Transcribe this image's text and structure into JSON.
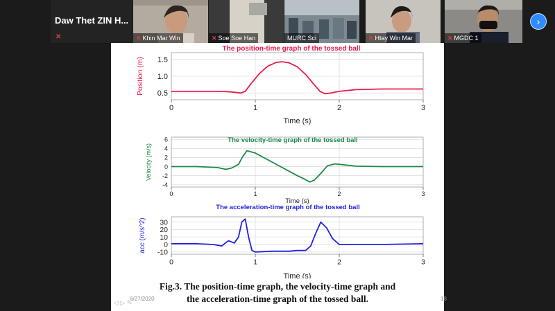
{
  "meeting": {
    "host_name": "Daw Thet ZIN H...",
    "next_label": "›",
    "participants": [
      {
        "name": "Khin Mar Win",
        "muted": true
      },
      {
        "name": "Soe Soe Han",
        "muted": true
      },
      {
        "name": "MURC Sci",
        "muted": false
      },
      {
        "name": "Htay Win Mar",
        "muted": true
      },
      {
        "name": "MGDC 1",
        "muted": true
      }
    ]
  },
  "slide": {
    "date": "6/27/2020",
    "page": "18",
    "caption_line1": "Fig.3. The position-time graph, the velocity-time graph and",
    "caption_line2": "the acceleration-time graph of the tossed ball.",
    "footer_icons": "◁ ▷ ✎ ⋯"
  },
  "chart_data": [
    {
      "type": "line",
      "title": "The position-time graph of the tossed ball",
      "xlabel": "Time (s)",
      "ylabel": "Position (m)",
      "color": "#e8194a",
      "xlim": [
        0,
        3
      ],
      "ylim": [
        0.3,
        1.7
      ],
      "xticks": [
        0,
        1,
        2,
        3
      ],
      "yticks": [
        0.5,
        1.0,
        1.5
      ],
      "ytick_labels": [
        "0.5",
        "1.0",
        "1.5"
      ],
      "x": [
        0,
        0.3,
        0.6,
        0.72,
        0.83,
        0.88,
        0.95,
        1.05,
        1.15,
        1.25,
        1.32,
        1.4,
        1.5,
        1.6,
        1.7,
        1.77,
        1.83,
        1.9,
        2.0,
        2.2,
        2.5,
        3.0
      ],
      "y": [
        0.55,
        0.55,
        0.55,
        0.53,
        0.5,
        0.55,
        0.78,
        1.08,
        1.3,
        1.41,
        1.43,
        1.4,
        1.28,
        1.05,
        0.75,
        0.55,
        0.48,
        0.5,
        0.55,
        0.6,
        0.62,
        0.62
      ]
    },
    {
      "type": "line",
      "title": "The velocity-time graph of the tossed ball",
      "xlabel": "Time (s)",
      "ylabel": "Velocity (m/s)",
      "color": "#1a8a45",
      "xlim": [
        0,
        3
      ],
      "ylim": [
        -4.5,
        6.5
      ],
      "xticks": [
        0,
        1,
        2,
        3
      ],
      "yticks": [
        -4,
        -2,
        0,
        2,
        4,
        6
      ],
      "ytick_labels": [
        "-4",
        "-2",
        "0",
        "2",
        "4",
        "6"
      ],
      "x": [
        0,
        0.3,
        0.55,
        0.65,
        0.72,
        0.8,
        0.85,
        0.9,
        1.0,
        1.1,
        1.2,
        1.3,
        1.4,
        1.5,
        1.58,
        1.65,
        1.7,
        1.78,
        1.86,
        1.95,
        2.05,
        2.2,
        2.5,
        3.0
      ],
      "y": [
        0,
        0,
        -0.2,
        -0.6,
        -0.3,
        0.5,
        2.2,
        3.5,
        3.0,
        2.0,
        1.0,
        0,
        -1.0,
        -2.0,
        -2.7,
        -3.4,
        -3.0,
        -1.5,
        0.2,
        0.6,
        0.4,
        0.1,
        0,
        0
      ]
    },
    {
      "type": "line",
      "title": "The acceleration-time graph of the tossed ball",
      "xlabel": "Time (s)",
      "ylabel": "acc (m/s^2)",
      "color": "#1f1fe0",
      "xlim": [
        0,
        3
      ],
      "ylim": [
        -13,
        37
      ],
      "xticks": [
        0,
        1,
        2,
        3
      ],
      "yticks": [
        -10,
        0,
        10,
        20,
        30
      ],
      "ytick_labels": [
        "-10",
        "0",
        "10",
        "20",
        "30"
      ],
      "x": [
        0,
        0.3,
        0.5,
        0.6,
        0.68,
        0.75,
        0.8,
        0.84,
        0.88,
        0.92,
        0.96,
        1.0,
        1.2,
        1.4,
        1.5,
        1.6,
        1.66,
        1.72,
        1.78,
        1.85,
        1.92,
        2.0,
        2.2,
        2.5,
        3.0
      ],
      "y": [
        1,
        1,
        0,
        -2,
        5,
        2,
        10,
        30,
        34,
        10,
        -8,
        -10,
        -9,
        -9,
        -8,
        -8,
        -2,
        15,
        30,
        22,
        8,
        0,
        0,
        0,
        1
      ]
    }
  ]
}
